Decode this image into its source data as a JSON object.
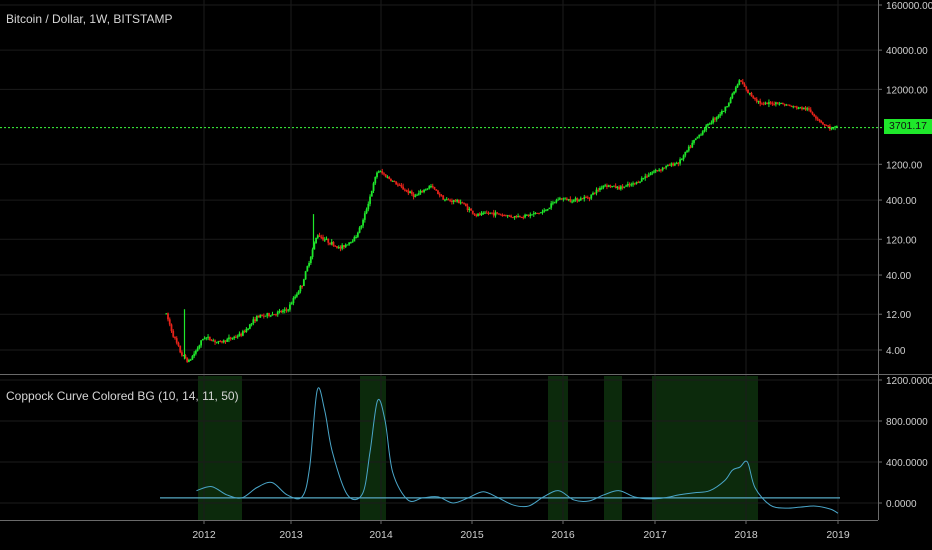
{
  "header": {
    "main_title": "Bitcoin / Dollar, 1W, BITSTAMP",
    "indicator_title": "Coppock Curve Colored BG (10, 14, 11, 50)"
  },
  "last_price": "3701.17",
  "colors": {
    "up": "#1fe82b",
    "down": "#e8231a",
    "indicator_line": "#4aa6c9",
    "zero_line": "#56a7c2",
    "price_line": "#3dff3d",
    "bg_highlight": "#0c2a0c",
    "grid": "#1b1b1b",
    "axis_text": "#cfcfcf"
  },
  "chart_data": [
    {
      "type": "candlestick",
      "title": "Bitcoin / Dollar, 1W, BITSTAMP",
      "y_scale": "log",
      "y_ticks": [
        "160000.00",
        "40000.00",
        "12000.00",
        "1200.00",
        "400.00",
        "120.00",
        "40.00",
        "12.00",
        "4.00"
      ],
      "ylim": [
        2,
        180000
      ],
      "x_ticks": [
        "2012",
        "2013",
        "2014",
        "2015",
        "2016",
        "2017",
        "2018",
        "2019"
      ],
      "last_value": 3701.17,
      "series_points": [
        [
          "2011-08",
          12
        ],
        [
          "2011-09",
          6
        ],
        [
          "2011-10",
          3.5
        ],
        [
          "2011-11",
          2.8
        ],
        [
          "2011-12",
          4
        ],
        [
          "2012-01",
          6
        ],
        [
          "2012-03",
          5
        ],
        [
          "2012-06",
          6.5
        ],
        [
          "2012-08",
          11
        ],
        [
          "2012-10",
          12
        ],
        [
          "2012-12",
          13.5
        ],
        [
          "2013-02",
          30
        ],
        [
          "2013-04",
          140
        ],
        [
          "2013-05",
          120
        ],
        [
          "2013-07",
          90
        ],
        [
          "2013-09",
          125
        ],
        [
          "2013-10",
          200
        ],
        [
          "2013-12",
          1000
        ],
        [
          "2014-01",
          850
        ],
        [
          "2014-03",
          600
        ],
        [
          "2014-05",
          450
        ],
        [
          "2014-07",
          620
        ],
        [
          "2014-09",
          400
        ],
        [
          "2014-11",
          380
        ],
        [
          "2015-01",
          250
        ],
        [
          "2015-03",
          270
        ],
        [
          "2015-06",
          240
        ],
        [
          "2015-08",
          250
        ],
        [
          "2015-10",
          280
        ],
        [
          "2015-12",
          420
        ],
        [
          "2016-02",
          400
        ],
        [
          "2016-04",
          440
        ],
        [
          "2016-06",
          640
        ],
        [
          "2016-08",
          580
        ],
        [
          "2016-10",
          650
        ],
        [
          "2016-12",
          900
        ],
        [
          "2017-02",
          1100
        ],
        [
          "2017-04",
          1300
        ],
        [
          "2017-06",
          2500
        ],
        [
          "2017-08",
          4300
        ],
        [
          "2017-10",
          6500
        ],
        [
          "2017-12",
          16000
        ],
        [
          "2018-01",
          11000
        ],
        [
          "2018-03",
          7500
        ],
        [
          "2018-05",
          8000
        ],
        [
          "2018-07",
          7000
        ],
        [
          "2018-09",
          6500
        ],
        [
          "2018-11",
          4200
        ],
        [
          "2018-12",
          3600
        ],
        [
          "2019-01",
          3701
        ]
      ]
    },
    {
      "type": "line",
      "title": "Coppock Curve Colored BG (10, 14, 11, 50)",
      "y_ticks": [
        "1200.0000",
        "800.0000",
        "400.0000",
        "0.0000"
      ],
      "ylim": [
        -100,
        1200
      ],
      "threshold": 50,
      "x": [
        "2011-12",
        "2012-02",
        "2012-04",
        "2012-06",
        "2012-08",
        "2012-10",
        "2012-12",
        "2013-02",
        "2013-03",
        "2013-04",
        "2013-05",
        "2013-06",
        "2013-08",
        "2013-10",
        "2013-11",
        "2013-12",
        "2014-01",
        "2014-02",
        "2014-04",
        "2014-06",
        "2014-08",
        "2014-10",
        "2014-12",
        "2015-02",
        "2015-04",
        "2015-06",
        "2015-08",
        "2015-10",
        "2015-12",
        "2016-02",
        "2016-04",
        "2016-06",
        "2016-08",
        "2016-10",
        "2016-12",
        "2017-02",
        "2017-04",
        "2017-06",
        "2017-08",
        "2017-10",
        "2017-11",
        "2017-12",
        "2018-01",
        "2018-02",
        "2018-04",
        "2018-06",
        "2018-08",
        "2018-10",
        "2018-12",
        "2019-01"
      ],
      "values": [
        120,
        160,
        80,
        50,
        150,
        200,
        80,
        60,
        350,
        1100,
        900,
        500,
        80,
        90,
        500,
        1000,
        800,
        300,
        30,
        50,
        60,
        0,
        50,
        110,
        50,
        -20,
        -30,
        60,
        120,
        30,
        20,
        80,
        120,
        60,
        40,
        50,
        80,
        100,
        120,
        220,
        320,
        350,
        400,
        150,
        -20,
        -50,
        -40,
        -30,
        -60,
        -100
      ]
    }
  ]
}
